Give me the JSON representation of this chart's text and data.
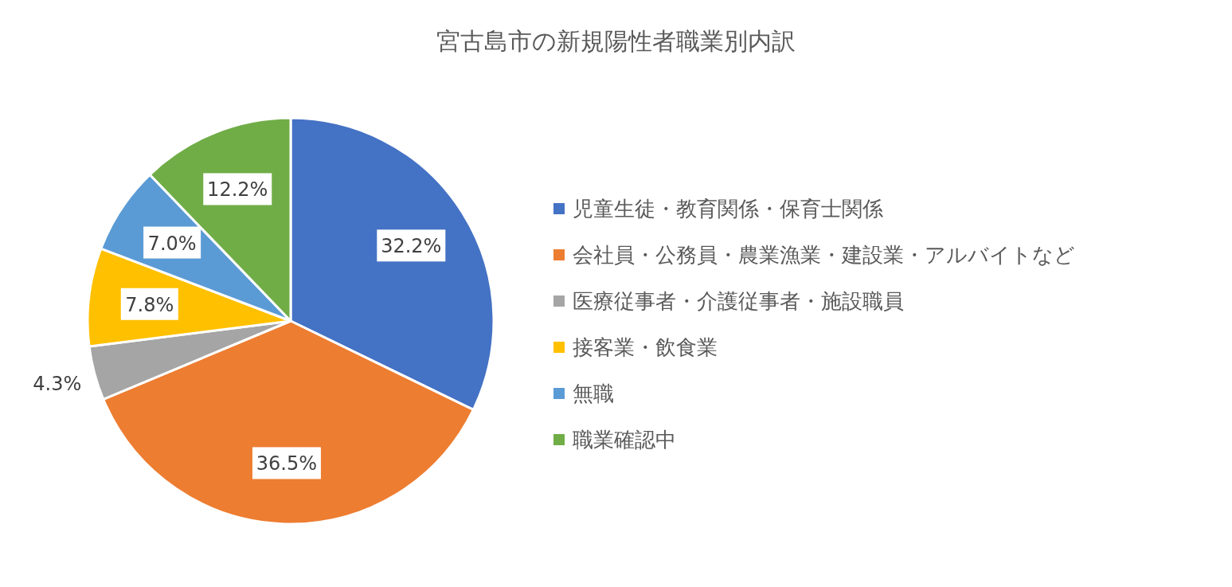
{
  "chart_data": {
    "type": "pie",
    "title": "宮古島市の新規陽性者職業別内訳",
    "categories": [
      "児童生徒・教育関係・保育士関係",
      "会社員・公務員・農業漁業・建設業・アルバイトなど",
      "医療従事者・介護従事者・施設職員",
      "接客業・飲食業",
      "無職",
      "職業確認中"
    ],
    "values": [
      32.2,
      36.5,
      4.3,
      7.8,
      7.0,
      12.2
    ],
    "colors": [
      "#4472c4",
      "#ed7d31",
      "#a5a5a5",
      "#ffc000",
      "#5b9bd5",
      "#70ad47"
    ],
    "value_labels": [
      "32.2%",
      "36.5%",
      "4.3%",
      "7.8%",
      "7.0%",
      "12.2%"
    ],
    "legend": "right"
  }
}
